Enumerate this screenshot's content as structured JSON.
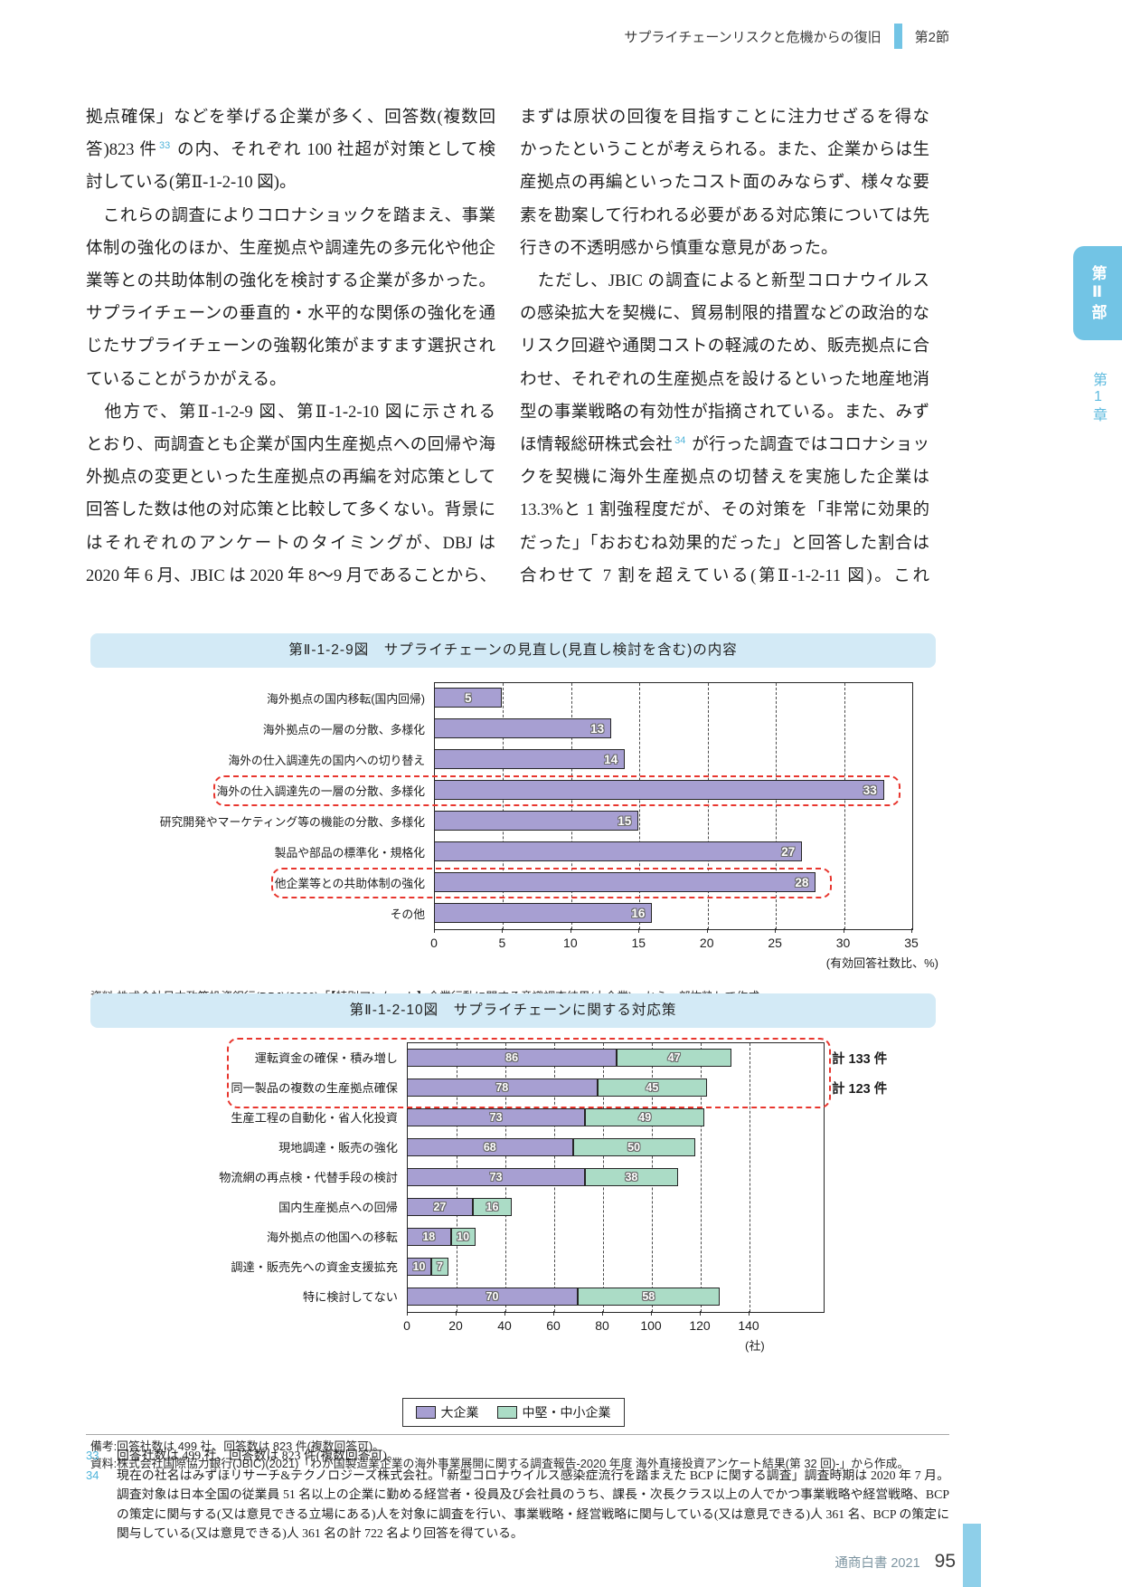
{
  "header": {
    "title": "サプライチェーンリスクと危機からの復旧",
    "section": "第2節"
  },
  "side": {
    "part": "第Ⅱ部",
    "chapter": "第1章"
  },
  "colors": {
    "accent_blue": "#72c4e5",
    "figure_title_bg": "#d3eaf6",
    "bar_purple": "#a79fd2",
    "bar_green": "#abdcc6",
    "highlight_red": "#e8362e",
    "footnote_blue": "#4fb4da"
  },
  "body": {
    "left": [
      {
        "t": "拠点確保」などを挙げる企業が多く、回答数(複数回"
      },
      {
        "pre": "答)823 件",
        "sup": "33",
        "post": " の内、それぞれ 100 社超が対策として検"
      },
      {
        "t": "討している(第Ⅱ-1-2-10 図)。",
        "end": true
      },
      {
        "t": "　これらの調査によりコロナショックを踏まえ、事業"
      },
      {
        "t": "体制の強化のほか、生産拠点や調達先の多元化や他企"
      },
      {
        "t": "業等との共助体制の強化を検討する企業が多かった。"
      },
      {
        "t": "サプライチェーンの垂直的・水平的な関係の強化を通"
      },
      {
        "t": "じたサプライチェーンの強靱化策がますます選択され"
      },
      {
        "t": "ていることがうかがえる。",
        "end": true
      },
      {
        "t": "　他方で、第Ⅱ-1-2-9 図、第Ⅱ-1-2-10 図に示される"
      },
      {
        "t": "とおり、両調査とも企業が国内生産拠点への回帰や海"
      },
      {
        "t": "外拠点の変更といった生産拠点の再編を対応策として"
      },
      {
        "t": "回答した数は他の対応策と比較して多くない。背景に"
      },
      {
        "t": "はそれぞれのアンケートのタイミングが、DBJ は"
      },
      {
        "t": "2020 年 6 月、JBIC は 2020 年 8〜9 月であることから、"
      }
    ],
    "right": [
      {
        "t": "まずは原状の回復を目指すことに注力せざるを得な"
      },
      {
        "t": "かったということが考えられる。また、企業からは生"
      },
      {
        "t": "産拠点の再編といったコスト面のみならず、様々な要"
      },
      {
        "t": "素を勘案して行われる必要がある対応策については先"
      },
      {
        "t": "行きの不透明感から慎重な意見があった。",
        "end": true
      },
      {
        "t": "　ただし、JBIC の調査によると新型コロナウイルス"
      },
      {
        "t": "の感染拡大を契機に、貿易制限的措置などの政治的な"
      },
      {
        "t": "リスク回避や通関コストの軽減のため、販売拠点に合"
      },
      {
        "t": "わせ、それぞれの生産拠点を設けるといった地産地消"
      },
      {
        "t": "型の事業戦略の有効性が指摘されている。また、みず"
      },
      {
        "pre": "ほ情報総研株式会社",
        "sup": "34",
        "post": " が行った調査ではコロナショッ"
      },
      {
        "t": "クを契機に海外生産拠点の切替えを実施した企業は"
      },
      {
        "t": "13.3%と 1 割強程度だが、その対策を「非常に効果的"
      },
      {
        "t": "だった」「おおむね効果的だった」と回答した割合は"
      },
      {
        "t": "合わせて 7 割を超えている(第Ⅱ-1-2-11 図)。これ"
      }
    ]
  },
  "figure1": {
    "title": "第Ⅱ-1-2-9図　サプライチェーンの見直し(見直し検討を含む)の内容",
    "source": "資料:株式会社日本政策投資銀行(DBJ)(2020)「【特別アンケート】企業行動に関する意識調査結果(大企業)」から一部抜粋して作成。"
  },
  "figure2": {
    "title": "第Ⅱ-1-2-10図　サプライチェーンに関する対応策",
    "note1": "備考:回答社数は 499 社、回答数は 823 件(複数回答可)。",
    "note2": "資料:株式会社国際協力銀行(JBIC)(2021)「わが国製造業企業の海外事業展開に関する調査報告-2020 年度 海外直接投資アンケート結果(第 32 回)-」から作成。"
  },
  "chart_data": [
    {
      "type": "bar",
      "title": "第Ⅱ-1-2-9図 サプライチェーンの見直し(見直し検討を含む)の内容",
      "categories": [
        "海外拠点の国内移転(国内回帰)",
        "海外拠点の一層の分散、多様化",
        "海外の仕入調達先の国内への切り替え",
        "海外の仕入調達先の一層の分散、多様化",
        "研究開発やマーケティング等の機能の分散、多様化",
        "製品や部品の標準化・規格化",
        "他企業等との共助体制の強化",
        "その他"
      ],
      "values": [
        5,
        13,
        14,
        33,
        15,
        27,
        28,
        16
      ],
      "highlighted": [
        3,
        6
      ],
      "xlabel": "(有効回答社数比、%)",
      "xlim": [
        0,
        35
      ],
      "xticks": [
        0,
        5,
        10,
        15,
        20,
        25,
        30,
        35
      ],
      "grid": true,
      "legend": false
    },
    {
      "type": "bar",
      "title": "第Ⅱ-1-2-10図 サプライチェーンに関する対応策",
      "categories": [
        "運転資金の確保・積み増し",
        "同一製品の複数の生産拠点確保",
        "生産工程の自動化・省人化投資",
        "現地調達・販売の強化",
        "物流網の再点検・代替手段の検討",
        "国内生産拠点への回帰",
        "海外拠点の他国への移転",
        "調達・販売先への資金支援拡充",
        "特に検討してない"
      ],
      "series": [
        {
          "name": "大企業",
          "values": [
            86,
            78,
            73,
            68,
            73,
            27,
            18,
            10,
            70
          ]
        },
        {
          "name": "中堅・中小企業",
          "values": [
            47,
            45,
            49,
            50,
            38,
            16,
            10,
            7,
            58
          ]
        }
      ],
      "annotations": [
        "計 133 件",
        "計 123 件"
      ],
      "highlighted": [
        0,
        1
      ],
      "xlabel": "(社)",
      "xlim": [
        0,
        140
      ],
      "xticks": [
        0,
        20,
        40,
        60,
        80,
        100,
        120,
        140
      ],
      "grid": true,
      "legend_position": "bottom"
    }
  ],
  "footnotes": [
    {
      "num": "33",
      "text": "回答社数は 499 社、回答数は 823 件(複数回答可)。"
    },
    {
      "num": "34",
      "text": "現在の社名はみずほリサーチ&テクノロジーズ株式会社。「新型コロナウイルス感染症流行を踏まえた BCP に関する調査」調査時期は 2020 年 7 月。調査対象は日本全国の従業員 51 名以上の企業に勤める経営者・役員及び会社員のうち、課長・次長クラス以上の人でかつ事業戦略や経営戦略、BCP の策定に関与する(又は意見できる立場にある)人を対象に調査を行い、事業戦略・経営戦略に関与している(又は意見できる)人 361 名、BCP の策定に関与している(又は意見できる)人 361 名の計 722 名より回答を得ている。"
    }
  ],
  "footer": {
    "book": "通商白書 2021",
    "page": "95"
  }
}
